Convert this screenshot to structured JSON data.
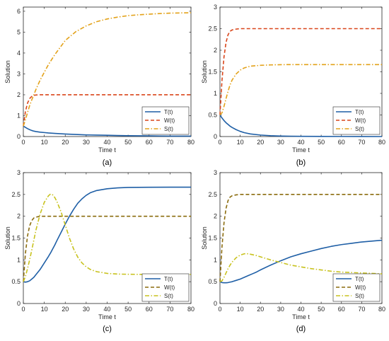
{
  "chart_data": [
    {
      "type": "line",
      "panel_label": "(a)",
      "xlabel": "Time t",
      "ylabel": "Solution",
      "xlim": [
        0,
        80
      ],
      "ylim": [
        0,
        6.2
      ],
      "xticks": [
        0,
        10,
        20,
        30,
        40,
        50,
        60,
        70,
        80
      ],
      "yticks": [
        0,
        1,
        2,
        3,
        4,
        5,
        6
      ],
      "grid": false,
      "legend_position": "bottom-right",
      "x": [
        0,
        1,
        2,
        3,
        4,
        5,
        6,
        8,
        10,
        12,
        15,
        20,
        25,
        30,
        35,
        40,
        45,
        50,
        55,
        60,
        65,
        70,
        75,
        80
      ],
      "series": [
        {
          "name": "T(t)",
          "color": "#1f5fa6",
          "dash": "solid",
          "values": [
            0.5,
            0.44,
            0.38,
            0.33,
            0.29,
            0.26,
            0.24,
            0.21,
            0.19,
            0.17,
            0.15,
            0.12,
            0.1,
            0.08,
            0.07,
            0.06,
            0.05,
            0.04,
            0.035,
            0.03,
            0.025,
            0.02,
            0.02,
            0.02
          ]
        },
        {
          "name": "W(t)",
          "color": "#d9451a",
          "dash": "dashed",
          "values": [
            0.5,
            1.2,
            1.6,
            1.82,
            1.92,
            1.97,
            1.99,
            2.0,
            2.0,
            2.0,
            2.0,
            2.0,
            2.0,
            2.0,
            2.0,
            2.0,
            2.0,
            2.0,
            2.0,
            2.0,
            2.0,
            2.0,
            2.0,
            2.0
          ]
        },
        {
          "name": "S(t)",
          "color": "#e3a21a",
          "dash": "dashdot",
          "values": [
            0.5,
            0.8,
            1.15,
            1.48,
            1.75,
            2.0,
            2.25,
            2.7,
            3.08,
            3.45,
            3.92,
            4.6,
            5.02,
            5.3,
            5.5,
            5.63,
            5.72,
            5.79,
            5.83,
            5.86,
            5.89,
            5.91,
            5.92,
            5.93
          ]
        }
      ]
    },
    {
      "type": "line",
      "panel_label": "(b)",
      "xlabel": "Time t",
      "ylabel": "Solution",
      "xlim": [
        0,
        80
      ],
      "ylim": [
        0,
        3
      ],
      "xticks": [
        0,
        10,
        20,
        30,
        40,
        50,
        60,
        70,
        80
      ],
      "yticks": [
        0,
        0.5,
        1,
        1.5,
        2,
        2.5,
        3
      ],
      "grid": false,
      "legend_position": "bottom-right",
      "x": [
        0,
        1,
        2,
        3,
        4,
        5,
        6,
        8,
        10,
        12,
        15,
        20,
        25,
        30,
        35,
        40,
        50,
        60,
        70,
        80
      ],
      "series": [
        {
          "name": "T(t)",
          "color": "#1f5fa6",
          "dash": "solid",
          "values": [
            0.5,
            0.43,
            0.37,
            0.32,
            0.28,
            0.24,
            0.21,
            0.16,
            0.12,
            0.09,
            0.06,
            0.035,
            0.02,
            0.012,
            0.008,
            0.005,
            0.003,
            0.002,
            0.001,
            0.0
          ]
        },
        {
          "name": "W(t)",
          "color": "#d9451a",
          "dash": "dashed",
          "values": [
            0.5,
            1.3,
            1.85,
            2.18,
            2.36,
            2.44,
            2.47,
            2.49,
            2.5,
            2.5,
            2.5,
            2.5,
            2.5,
            2.5,
            2.5,
            2.5,
            2.5,
            2.5,
            2.5,
            2.5
          ]
        },
        {
          "name": "S(t)",
          "color": "#e3a21a",
          "dash": "dashdot",
          "values": [
            0.5,
            0.55,
            0.7,
            0.88,
            1.05,
            1.2,
            1.31,
            1.45,
            1.54,
            1.59,
            1.63,
            1.65,
            1.66,
            1.665,
            1.667,
            1.667,
            1.667,
            1.667,
            1.667,
            1.667
          ]
        }
      ]
    },
    {
      "type": "line",
      "panel_label": "(c)",
      "xlabel": "Time t",
      "ylabel": "Solution",
      "xlim": [
        0,
        80
      ],
      "ylim": [
        0,
        3
      ],
      "xticks": [
        0,
        10,
        20,
        30,
        40,
        50,
        60,
        70,
        80
      ],
      "yticks": [
        0,
        0.5,
        1,
        1.5,
        2,
        2.5,
        3
      ],
      "grid": false,
      "legend_position": "bottom-right",
      "x": [
        0,
        1,
        2,
        3,
        4,
        5,
        6,
        8,
        10,
        12,
        13,
        14,
        15,
        16,
        18,
        20,
        22,
        24,
        26,
        28,
        30,
        32,
        35,
        40,
        45,
        50,
        60,
        70,
        80
      ],
      "series": [
        {
          "name": "T(t)",
          "color": "#1f5fa6",
          "dash": "solid",
          "values": [
            0.5,
            0.49,
            0.5,
            0.52,
            0.56,
            0.6,
            0.66,
            0.78,
            0.93,
            1.08,
            1.16,
            1.25,
            1.34,
            1.44,
            1.63,
            1.82,
            2.0,
            2.16,
            2.3,
            2.4,
            2.48,
            2.54,
            2.59,
            2.63,
            2.65,
            2.66,
            2.665,
            2.667,
            2.667
          ]
        },
        {
          "name": "W(t)",
          "color": "#8b6c0e",
          "dash": "dashed",
          "values": [
            0.5,
            1.15,
            1.55,
            1.78,
            1.9,
            1.96,
            1.98,
            2.0,
            2.0,
            2.0,
            2.0,
            2.0,
            2.0,
            2.0,
            2.0,
            2.0,
            2.0,
            2.0,
            2.0,
            2.0,
            2.0,
            2.0,
            2.0,
            2.0,
            2.0,
            2.0,
            2.0,
            2.0,
            2.0
          ]
        },
        {
          "name": "S(t)",
          "color": "#c8c21e",
          "dash": "dashdot",
          "values": [
            0.5,
            0.62,
            0.8,
            1.0,
            1.22,
            1.45,
            1.68,
            2.05,
            2.32,
            2.47,
            2.51,
            2.49,
            2.43,
            2.34,
            2.1,
            1.8,
            1.5,
            1.25,
            1.06,
            0.93,
            0.84,
            0.78,
            0.73,
            0.69,
            0.675,
            0.67,
            0.667,
            0.667,
            0.667
          ]
        }
      ]
    },
    {
      "type": "line",
      "panel_label": "(d)",
      "xlabel": "Time t",
      "ylabel": "Solution",
      "xlim": [
        0,
        80
      ],
      "ylim": [
        0,
        3
      ],
      "xticks": [
        0,
        10,
        20,
        30,
        40,
        50,
        60,
        70,
        80
      ],
      "yticks": [
        0,
        0.5,
        1,
        1.5,
        2,
        2.5,
        3
      ],
      "grid": false,
      "legend_position": "bottom-right",
      "x": [
        0,
        1,
        2,
        3,
        4,
        5,
        6,
        8,
        10,
        12,
        14,
        16,
        18,
        20,
        25,
        30,
        35,
        40,
        45,
        50,
        55,
        60,
        65,
        70,
        75,
        80
      ],
      "series": [
        {
          "name": "T(t)",
          "color": "#1f5fa6",
          "dash": "solid",
          "values": [
            0.5,
            0.48,
            0.475,
            0.475,
            0.48,
            0.49,
            0.5,
            0.53,
            0.56,
            0.6,
            0.64,
            0.68,
            0.72,
            0.77,
            0.88,
            0.98,
            1.07,
            1.14,
            1.2,
            1.26,
            1.31,
            1.35,
            1.38,
            1.41,
            1.43,
            1.45
          ]
        },
        {
          "name": "W(t)",
          "color": "#8b6c0e",
          "dash": "dashed",
          "values": [
            0.5,
            1.3,
            1.85,
            2.18,
            2.36,
            2.44,
            2.47,
            2.49,
            2.5,
            2.5,
            2.5,
            2.5,
            2.5,
            2.5,
            2.5,
            2.5,
            2.5,
            2.5,
            2.5,
            2.5,
            2.5,
            2.5,
            2.5,
            2.5,
            2.5,
            2.5
          ]
        },
        {
          "name": "S(t)",
          "color": "#c8c21e",
          "dash": "dashdot",
          "values": [
            0.5,
            0.52,
            0.6,
            0.7,
            0.8,
            0.88,
            0.95,
            1.05,
            1.11,
            1.14,
            1.14,
            1.12,
            1.1,
            1.07,
            1.0,
            0.94,
            0.88,
            0.84,
            0.8,
            0.77,
            0.74,
            0.72,
            0.71,
            0.7,
            0.69,
            0.68
          ]
        }
      ]
    }
  ]
}
